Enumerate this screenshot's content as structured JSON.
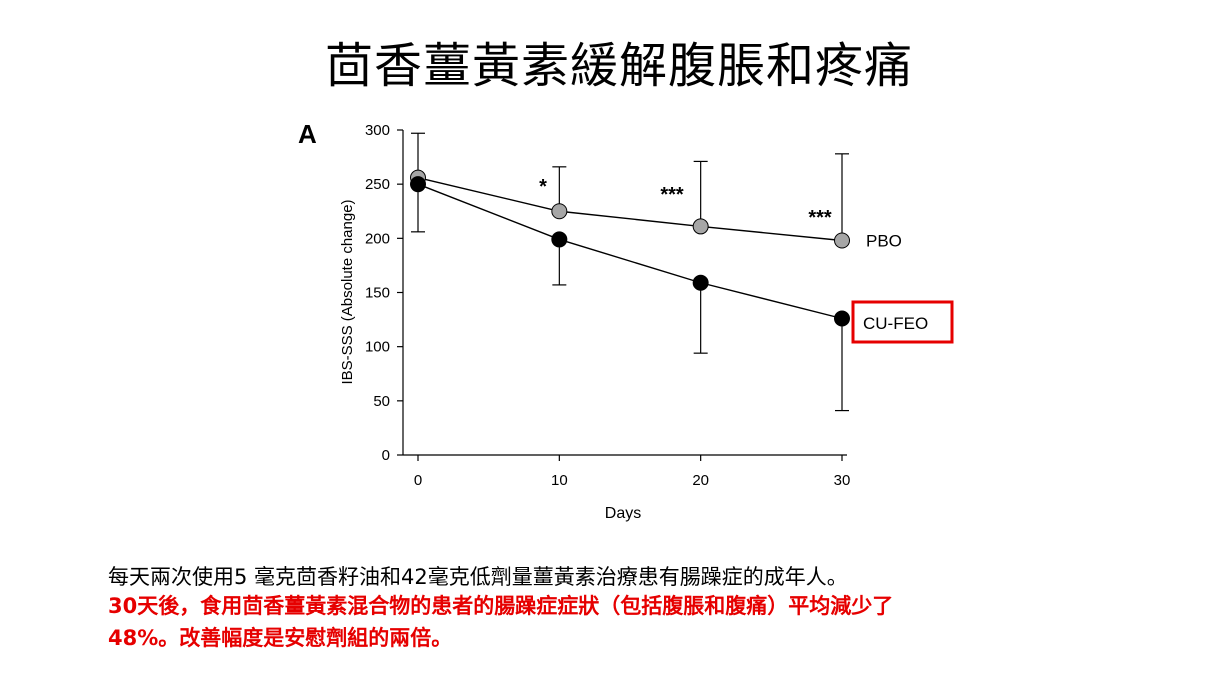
{
  "slide": {
    "title": "茴香薑黃素緩解腹脹和疼痛",
    "note_line1": "每天兩次使用5 毫克茴香籽油和42毫克低劑量薑黃素治療患有腸躁症的成年人。",
    "note_line2": "30天後，食用茴香薑黃素混合物的患者的腸躁症症狀（包括腹脹和腹痛）平均減少了",
    "note_line3": "48%。改善幅度是安慰劑組的兩倍。",
    "accent_color": "#e60000"
  },
  "chart_data": {
    "type": "line",
    "panel_label": "A",
    "xlabel": "Days",
    "ylabel": "IBS-SSS (Absolute change)",
    "x": [
      0,
      10,
      20,
      30
    ],
    "xticks": [
      0,
      10,
      20,
      30
    ],
    "yticks": [
      0,
      50,
      100,
      150,
      200,
      250,
      300
    ],
    "xlim": [
      0,
      30
    ],
    "ylim": [
      0,
      300
    ],
    "grid": false,
    "series": [
      {
        "name": "PBO",
        "values": [
          256,
          225,
          211,
          198
        ],
        "error_upper": [
          297,
          266,
          271,
          278
        ],
        "error_lower": [
          256,
          225,
          211,
          198
        ],
        "color": "#a6a6a6"
      },
      {
        "name": "CU-FEO",
        "values": [
          250,
          199,
          159,
          126
        ],
        "error_upper": [
          250,
          199,
          159,
          126
        ],
        "error_lower": [
          206,
          157,
          94,
          41
        ],
        "color": "#000000",
        "highlight_color": "#e60000"
      }
    ],
    "annotations": [
      {
        "x": 10,
        "text": "*"
      },
      {
        "x": 20,
        "text": "***"
      },
      {
        "x": 30,
        "text": "***"
      }
    ]
  }
}
